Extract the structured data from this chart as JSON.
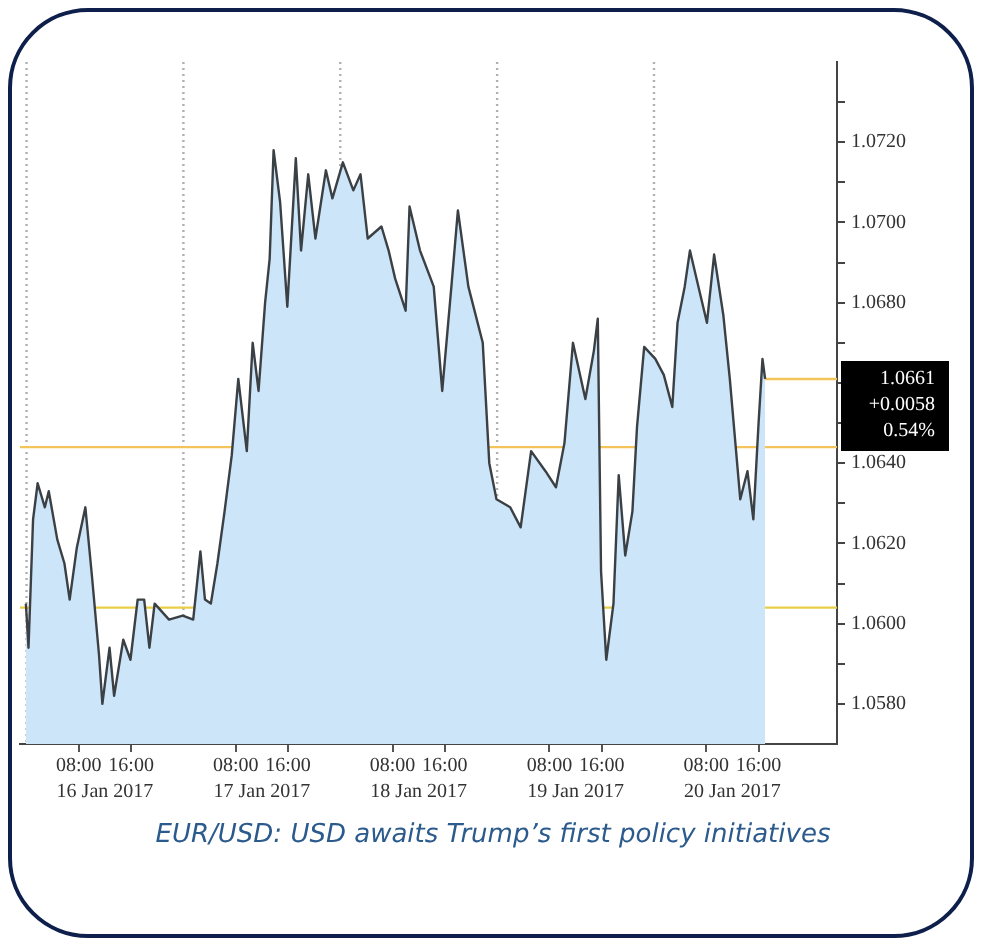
{
  "chart_data": {
    "type": "area",
    "title": "EUR/USD: USD awaits Trump’s first policy initiatives",
    "annotations": [
      "+0.0058",
      "0.54%"
    ],
    "xlim": [
      "2017-01-15T23:00",
      "2017-01-21T04:00"
    ],
    "xticks": [
      {
        "value": "2017-01-16T08:00",
        "label": "08:00"
      },
      {
        "value": "2017-01-16T16:00",
        "label": "16:00"
      },
      {
        "value": "2017-01-17T08:00",
        "label": "08:00"
      },
      {
        "value": "2017-01-17T16:00",
        "label": "16:00"
      },
      {
        "value": "2017-01-18T08:00",
        "label": "08:00"
      },
      {
        "value": "2017-01-18T16:00",
        "label": "16:00"
      },
      {
        "value": "2017-01-19T08:00",
        "label": "08:00"
      },
      {
        "value": "2017-01-19T16:00",
        "label": "16:00"
      },
      {
        "value": "2017-01-20T08:00",
        "label": "08:00"
      },
      {
        "value": "2017-01-20T16:00",
        "label": "16:00"
      }
    ],
    "x2lim": [
      "2017-01-15T23:00",
      "2017-01-21T04:00"
    ],
    "x2ticks": [
      {
        "value": "2017-01-16T12:00",
        "label": "16 Jan 2017"
      },
      {
        "value": "2017-01-17T12:00",
        "label": "17 Jan 2017"
      },
      {
        "value": "2017-01-18T12:00",
        "label": "18 Jan 2017"
      },
      {
        "value": "2017-01-19T12:00",
        "label": "19 Jan 2017"
      },
      {
        "value": "2017-01-20T12:00",
        "label": "20 Jan 2017"
      }
    ],
    "ylim": [
      1.057,
      1.074
    ],
    "yticks": [
      {
        "value": 1.058,
        "label": "1.0580"
      },
      {
        "value": 1.059,
        "label": null
      },
      {
        "value": 1.06,
        "label": "1.0600"
      },
      {
        "value": 1.061,
        "label": null
      },
      {
        "value": 1.062,
        "label": "1.0620"
      },
      {
        "value": 1.063,
        "label": null
      },
      {
        "value": 1.064,
        "label": "1.0640"
      },
      {
        "value": 1.065,
        "label": null
      },
      {
        "value": 1.066,
        "label": null
      },
      {
        "value": 1.067,
        "label": null
      },
      {
        "value": 1.068,
        "label": "1.0680"
      },
      {
        "value": 1.069,
        "label": null
      },
      {
        "value": 1.07,
        "label": "1.0700"
      },
      {
        "value": 1.071,
        "label": null
      },
      {
        "value": 1.072,
        "label": "1.0720"
      },
      {
        "value": 1.073,
        "label": null
      }
    ],
    "grid": false,
    "legend": false,
    "marker": "none",
    "line_style": "solid",
    "ref_lines": [
      {
        "axis": "x",
        "value": "2017-01-16T00:00",
        "color": "#b0b0b0",
        "line_style": "dotted"
      },
      {
        "axis": "x",
        "value": "2017-01-17T00:00",
        "color": "#b0b0b0",
        "line_style": "dotted"
      },
      {
        "axis": "x",
        "value": "2017-01-18T00:00",
        "color": "#b0b0b0",
        "line_style": "dotted"
      },
      {
        "axis": "x",
        "value": "2017-01-19T00:00",
        "color": "#b0b0b0",
        "line_style": "dotted"
      },
      {
        "axis": "x",
        "value": "2017-01-20T00:00",
        "color": "#b0b0b0",
        "line_style": "dotted"
      },
      {
        "axis": "y",
        "value": 1.0644,
        "color": "#f2c45a",
        "line_style": "solid"
      },
      {
        "axis": "y",
        "value": 1.0604,
        "color": "#e8cf45",
        "line_style": "solid"
      },
      {
        "axis": "y",
        "value": 1.0661,
        "label": "1.0661",
        "color": "#f2c45a",
        "line_style": "solid"
      }
    ],
    "series": [
      {
        "color": "#3b4045",
        "x": [
          "2017-01-15T23:54",
          "2017-01-16T00:18",
          "2017-01-16T01:00",
          "2017-01-16T01:42",
          "2017-01-16T02:48",
          "2017-01-16T03:24",
          "2017-01-16T04:42",
          "2017-01-16T05:48",
          "2017-01-16T06:36",
          "2017-01-16T07:42",
          "2017-01-16T09:00",
          "2017-01-16T10:00",
          "2017-01-16T11:06",
          "2017-01-16T11:36",
          "2017-01-16T12:42",
          "2017-01-16T13:24",
          "2017-01-16T14:48",
          "2017-01-16T15:54",
          "2017-01-16T17:00",
          "2017-01-16T18:00",
          "2017-01-16T18:48",
          "2017-01-16T19:36",
          "2017-01-16T21:48",
          "2017-01-16T23:54",
          "2017-01-17T01:30",
          "2017-01-17T02:36",
          "2017-01-17T03:18",
          "2017-01-17T04:12",
          "2017-01-17T05:12",
          "2017-01-17T06:18",
          "2017-01-17T07:24",
          "2017-01-17T08:24",
          "2017-01-17T09:42",
          "2017-01-17T10:36",
          "2017-01-17T11:30",
          "2017-01-17T12:30",
          "2017-01-17T13:12",
          "2017-01-17T13:48",
          "2017-01-17T14:48",
          "2017-01-17T15:54",
          "2017-01-17T17:12",
          "2017-01-17T18:00",
          "2017-01-17T19:06",
          "2017-01-17T20:12",
          "2017-01-17T21:48",
          "2017-01-17T22:48",
          "2017-01-18T00:24",
          "2017-01-18T02:00",
          "2017-01-18T03:06",
          "2017-01-18T04:12",
          "2017-01-18T06:18",
          "2017-01-18T07:24",
          "2017-01-18T08:24",
          "2017-01-18T10:00",
          "2017-01-18T10:36",
          "2017-01-18T12:12",
          "2017-01-18T14:18",
          "2017-01-18T15:36",
          "2017-01-18T17:00",
          "2017-01-18T18:00",
          "2017-01-18T19:36",
          "2017-01-18T21:48",
          "2017-01-18T22:48",
          "2017-01-18T23:54",
          "2017-01-19T02:00",
          "2017-01-19T03:36",
          "2017-01-19T05:12",
          "2017-01-19T07:24",
          "2017-01-19T09:00",
          "2017-01-19T10:18",
          "2017-01-19T11:36",
          "2017-01-19T13:30",
          "2017-01-19T14:48",
          "2017-01-19T15:24",
          "2017-01-19T15:54",
          "2017-01-19T16:42",
          "2017-01-19T17:48",
          "2017-01-19T18:36",
          "2017-01-19T19:36",
          "2017-01-19T20:42",
          "2017-01-19T21:24",
          "2017-01-19T22:30",
          "2017-01-20T00:12",
          "2017-01-20T01:30",
          "2017-01-20T02:48",
          "2017-01-20T03:36",
          "2017-01-20T04:42",
          "2017-01-20T05:30",
          "2017-01-20T06:48",
          "2017-01-20T08:06",
          "2017-01-20T09:12",
          "2017-01-20T10:36",
          "2017-01-20T11:36",
          "2017-01-20T13:12",
          "2017-01-20T14:18",
          "2017-01-20T15:12",
          "2017-01-20T16:00",
          "2017-01-20T16:36",
          "2017-01-20T17:00"
        ],
        "values": [
          1.0605,
          1.0594,
          1.0626,
          1.0635,
          1.0629,
          1.0633,
          1.0621,
          1.0615,
          1.0606,
          1.0619,
          1.0629,
          1.0612,
          1.0592,
          1.058,
          1.0594,
          1.0582,
          1.0596,
          1.0591,
          1.0606,
          1.0606,
          1.0594,
          1.0605,
          1.0601,
          1.0602,
          1.0601,
          1.0618,
          1.0606,
          1.0605,
          1.0615,
          1.0628,
          1.0642,
          1.0661,
          1.0643,
          1.067,
          1.0658,
          1.068,
          1.0691,
          1.0718,
          1.0705,
          1.0679,
          1.0716,
          1.0693,
          1.0712,
          1.0696,
          1.0713,
          1.0706,
          1.0715,
          1.0708,
          1.0712,
          1.0696,
          1.0699,
          1.0693,
          1.0686,
          1.0678,
          1.0704,
          1.0693,
          1.0684,
          1.0658,
          1.0684,
          1.0703,
          1.0684,
          1.067,
          1.064,
          1.0631,
          1.0629,
          1.0624,
          1.0643,
          1.0638,
          1.0634,
          1.0645,
          1.067,
          1.0656,
          1.0668,
          1.0676,
          1.0613,
          1.0591,
          1.0605,
          1.0637,
          1.0617,
          1.0628,
          1.0649,
          1.0669,
          1.0666,
          1.0662,
          1.0654,
          1.0675,
          1.0684,
          1.0693,
          1.0684,
          1.0675,
          1.0692,
          1.0677,
          1.0661,
          1.0631,
          1.0638,
          1.0626,
          1.065,
          1.0666,
          1.0661
        ]
      }
    ]
  }
}
